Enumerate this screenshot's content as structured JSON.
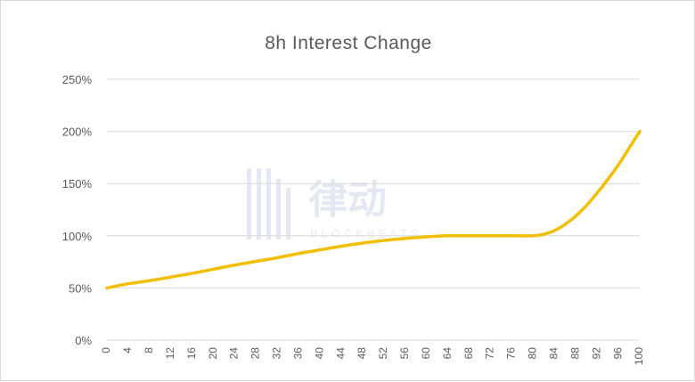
{
  "watermark": {
    "text": "律动",
    "subtext": "BLOCKBEATS"
  },
  "chart_data": {
    "type": "line",
    "title": "8h Interest Change",
    "xlabel": "",
    "ylabel": "",
    "xlim": [
      0,
      100
    ],
    "ylim": [
      0,
      250
    ],
    "y_ticks": [
      0,
      50,
      100,
      150,
      200,
      250
    ],
    "y_tick_labels": [
      "0%",
      "50%",
      "100%",
      "150%",
      "200%",
      "250%"
    ],
    "x_ticks": [
      0,
      4,
      8,
      12,
      16,
      20,
      24,
      28,
      32,
      36,
      40,
      44,
      48,
      52,
      56,
      60,
      64,
      68,
      72,
      76,
      80,
      84,
      88,
      92,
      96,
      100
    ],
    "grid": "horizontal",
    "legend": "none",
    "series": [
      {
        "color": "#f2be00",
        "x": [
          0,
          4,
          8,
          12,
          16,
          20,
          24,
          28,
          32,
          36,
          40,
          44,
          48,
          52,
          56,
          60,
          64,
          68,
          72,
          76,
          80,
          82,
          84,
          86,
          88,
          90,
          92,
          94,
          96,
          98,
          100
        ],
        "y": [
          50,
          54,
          57,
          60.5,
          64,
          68,
          72,
          75.5,
          79,
          83,
          86.5,
          90,
          93,
          95.5,
          97.5,
          99,
          100,
          100,
          100,
          100,
          100,
          101.5,
          105,
          111,
          119,
          129,
          141,
          154,
          168,
          184,
          200
        ]
      }
    ]
  }
}
